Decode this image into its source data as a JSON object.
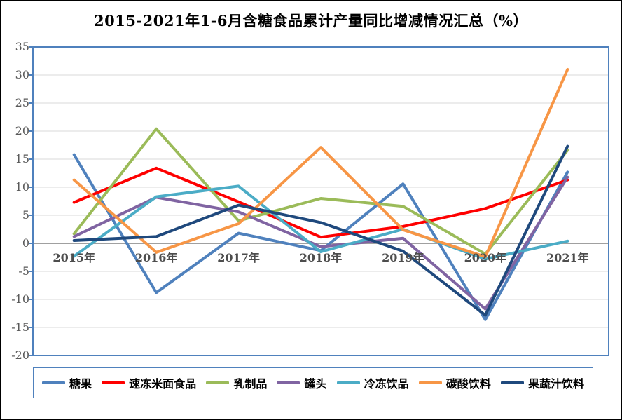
{
  "chart_data": {
    "type": "line",
    "title": "2015-2021年1-6月含糖食品累计产量同比增减情况汇总（%）",
    "categories": [
      "2015年",
      "2016年",
      "2017年",
      "2018年",
      "2019年",
      "2020年",
      "2021年"
    ],
    "y_ticks": [
      35,
      30,
      25,
      20,
      15,
      10,
      5,
      0,
      -5,
      -10,
      -15,
      -20
    ],
    "ylim": [
      -20,
      35
    ],
    "grid": true,
    "legend_position": "bottom",
    "axis_color": "#4F81BD",
    "gridline_color": "#D9D9D9",
    "zero_line_color": "#A0A0A0",
    "series": [
      {
        "name": "糖果",
        "color": "#4F81BD",
        "values": [
          15.8,
          -8.8,
          1.8,
          -1.3,
          10.6,
          -13.6,
          12.7
        ]
      },
      {
        "name": "速冻米面食品",
        "color": "#FE0000",
        "values": [
          7.3,
          13.4,
          7.4,
          1.1,
          3.0,
          6.2,
          11.3
        ]
      },
      {
        "name": "乳制品",
        "color": "#9BBB59",
        "values": [
          1.7,
          20.4,
          4.0,
          8.0,
          6.6,
          -1.9,
          16.6
        ]
      },
      {
        "name": "罐头",
        "color": "#8064A2",
        "values": [
          1.2,
          8.2,
          5.6,
          -0.6,
          0.9,
          -11.7,
          11.8
        ]
      },
      {
        "name": "冷冻饮品",
        "color": "#4BACC6",
        "values": [
          -2.3,
          8.3,
          10.2,
          -1.5,
          2.5,
          -2.8,
          0.4
        ]
      },
      {
        "name": "碳酸饮料",
        "color": "#F79646",
        "values": [
          11.3,
          -1.6,
          3.5,
          17.1,
          2.4,
          -2.4,
          31.0
        ]
      },
      {
        "name": "果蔬汁饮料",
        "color": "#1F497D",
        "values": [
          0.5,
          1.2,
          6.8,
          3.7,
          -1.4,
          -12.8,
          17.3
        ]
      }
    ]
  }
}
